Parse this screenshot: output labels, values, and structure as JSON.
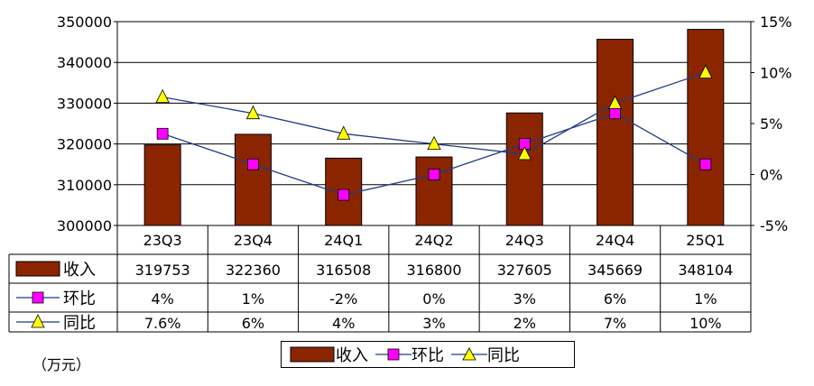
{
  "chart_data": {
    "type": "bar",
    "categories": [
      "23Q3",
      "23Q4",
      "24Q1",
      "24Q2",
      "24Q3",
      "24Q4",
      "25Q1"
    ],
    "series": [
      {
        "name": "收入",
        "kind": "bar",
        "axis": "left",
        "color": "#8B2500",
        "values": [
          319753,
          322360,
          316508,
          316800,
          327605,
          345669,
          348104
        ],
        "labels": [
          "319753",
          "322360",
          "316508",
          "316800",
          "327605",
          "345669",
          "348104"
        ]
      },
      {
        "name": "环比",
        "kind": "line",
        "axis": "right",
        "marker": "square",
        "color": "#FF00FF",
        "line_color": "#1F3A8A",
        "values": [
          4,
          1,
          -2,
          0,
          3,
          6,
          1
        ],
        "labels": [
          "4%",
          "1%",
          "-2%",
          "0%",
          "3%",
          "6%",
          "1%"
        ]
      },
      {
        "name": "同比",
        "kind": "line",
        "axis": "right",
        "marker": "triangle",
        "color": "#FFFF00",
        "line_color": "#1F3A8A",
        "values": [
          7.6,
          6,
          4,
          3,
          2,
          7,
          10
        ],
        "labels": [
          "7.6%",
          "6%",
          "4%",
          "3%",
          "2%",
          "7%",
          "10%"
        ]
      }
    ],
    "left_axis": {
      "min": 300000,
      "max": 350000,
      "step": 10000,
      "ticks": [
        "300000",
        "310000",
        "320000",
        "330000",
        "340000",
        "350000"
      ]
    },
    "right_axis": {
      "min": -5,
      "max": 15,
      "step": 5,
      "ticks": [
        "-5%",
        "0%",
        "5%",
        "10%",
        "15%"
      ]
    },
    "grid": true,
    "data_table": true,
    "legend": "bottom-center",
    "unit_label": "（万元）"
  }
}
